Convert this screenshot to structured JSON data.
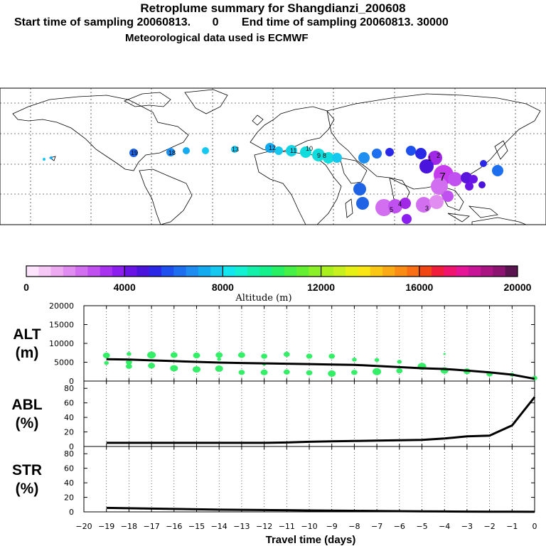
{
  "header": {
    "title": "Retroplume summary for Shangdianzi_200608",
    "start_label": "Start time of sampling 20060813.",
    "start_zero": "0",
    "end_label": "End time of sampling 20060813. 30000",
    "met_line": "Meteorological data used is ECMWF"
  },
  "colors": {
    "green_points": "#33ee66",
    "line": "#000000",
    "map_water": "#ffffff"
  },
  "map": {
    "plume_labels": [
      {
        "text": "19",
        "color": "#1e63e6"
      },
      {
        "text": "18",
        "color": "#1e8ef0"
      },
      {
        "text": "13",
        "color": "#14c8f0"
      },
      {
        "text": "12",
        "color": "#14c8f0"
      },
      {
        "text": "11",
        "color": "#14d2e6"
      },
      {
        "text": "10",
        "color": "#0fdcdc"
      },
      {
        "text": "9",
        "color": "#0fdcdc"
      },
      {
        "text": "8",
        "color": "#19b4f0"
      },
      {
        "text": "7",
        "color": "#c83cf0"
      },
      {
        "text": "5",
        "color": "#a028e6"
      },
      {
        "text": "4",
        "color": "#3214c8"
      },
      {
        "text": "3",
        "color": "#cc44ff"
      },
      {
        "text": "2",
        "color": "#aa22ee"
      },
      {
        "text": "1",
        "color": "#5a14dc"
      }
    ]
  },
  "colorbar": {
    "title": "Altitude (m)",
    "tick_labels": [
      "0",
      "4000",
      "8000",
      "12000",
      "16000",
      "20000"
    ],
    "colors": [
      "#fce4fc",
      "#f5c8f5",
      "#eeaaf0",
      "#e18cf0",
      "#d26ef0",
      "#c050f0",
      "#a832f0",
      "#8c1ef0",
      "#6a14e6",
      "#4a14dc",
      "#2a28e6",
      "#1e50f0",
      "#1e6ef0",
      "#1e8cf0",
      "#14aaf0",
      "#14c8f0",
      "#14e6f0",
      "#14f0d2",
      "#14f0aa",
      "#14f08c",
      "#28f064",
      "#46f046",
      "#64f032",
      "#8cf028",
      "#aaf01e",
      "#c8f01e",
      "#e6f014",
      "#fae614",
      "#fac814",
      "#faaa14",
      "#fa8c14",
      "#fa6e14",
      "#f04614",
      "#f01e3c",
      "#f0146e",
      "#e61496",
      "#c81496",
      "#aa1482",
      "#8c1470",
      "#5a1450"
    ]
  },
  "chart_data": {
    "type": "line",
    "xlabel": "Travel time (days)",
    "x_tick_labels": [
      "−20",
      "−19",
      "−18",
      "−17",
      "−16",
      "−15",
      "−14",
      "−13",
      "−12",
      "−11",
      "−10",
      "−9",
      "−8",
      "−7",
      "−6",
      "−5",
      "−4",
      "−3",
      "−2",
      "−1",
      "0"
    ],
    "xlim": [
      -20,
      0
    ],
    "panels": [
      {
        "name": "alt",
        "label_line1": "ALT",
        "label_line2": "(m)",
        "ylim": [
          0,
          20000
        ],
        "yticks": [
          "0",
          "5000",
          "10000",
          "15000",
          "20000"
        ],
        "line": {
          "x": [
            -19,
            -18,
            -17,
            -16,
            -15,
            -14,
            -13,
            -12,
            -11,
            -10,
            -9,
            -8,
            -7,
            -6,
            -5,
            -4,
            -3,
            -2,
            -1,
            0
          ],
          "y": [
            5800,
            5700,
            5500,
            5300,
            5100,
            4900,
            4800,
            4700,
            4600,
            4500,
            4400,
            4300,
            4000,
            3700,
            3400,
            3200,
            2800,
            2300,
            1700,
            600
          ]
        },
        "scatter": {
          "name": "plume clusters",
          "x": [
            -19,
            -19,
            -18,
            -18,
            -18,
            -17,
            -17,
            -16,
            -16,
            -15,
            -15,
            -14,
            -14,
            -14,
            -13,
            -13,
            -12,
            -12,
            -12,
            -11,
            -11,
            -10,
            -10,
            -9,
            -9,
            -8,
            -8,
            -7,
            -7,
            -6,
            -6,
            -5,
            -4,
            -4,
            -3,
            -2,
            -1,
            0
          ],
          "y": [
            6800,
            4800,
            7200,
            5000,
            3900,
            6900,
            4100,
            6900,
            3400,
            6800,
            3100,
            6900,
            3300,
            5800,
            6900,
            2300,
            6600,
            2300,
            4500,
            7100,
            2400,
            6600,
            2200,
            6600,
            2000,
            5700,
            2300,
            5600,
            2500,
            5100,
            2700,
            3900,
            7200,
            2800,
            2600,
            1900,
            1700,
            800
          ],
          "size": [
            9,
            6,
            6,
            8,
            8,
            11,
            9,
            9,
            10,
            9,
            10,
            9,
            10,
            5,
            9,
            8,
            8,
            9,
            5,
            8,
            8,
            8,
            8,
            8,
            10,
            6,
            8,
            6,
            11,
            6,
            8,
            11,
            3,
            10,
            9,
            8,
            6,
            7
          ]
        }
      },
      {
        "name": "abl",
        "label_line1": "ABL",
        "label_line2": "(%)",
        "ylim": [
          0,
          90
        ],
        "yticks": [
          "0",
          "20",
          "40",
          "60",
          "80"
        ],
        "line": {
          "x": [
            -19,
            -18,
            -17,
            -16,
            -15,
            -14,
            -13,
            -12,
            -11,
            -10,
            -9,
            -8,
            -7,
            -6,
            -5,
            -4,
            -3,
            -2,
            -1,
            0
          ],
          "y": [
            5,
            5,
            5,
            5,
            5,
            5,
            5,
            5,
            5.5,
            6.5,
            7,
            7.5,
            8,
            8.5,
            9,
            11,
            14,
            15,
            29,
            68
          ]
        }
      },
      {
        "name": "str",
        "label_line1": "STR",
        "label_line2": "(%)",
        "ylim": [
          0,
          90
        ],
        "yticks": [
          "0",
          "20",
          "40",
          "60",
          "80"
        ],
        "line": {
          "x": [
            -19,
            -18,
            -17,
            -16,
            -15,
            -14,
            -13,
            -12,
            -11,
            -10,
            -9,
            -8,
            -7,
            -6,
            -5,
            -4,
            -3,
            -2,
            -1,
            0
          ],
          "y": [
            5.5,
            5,
            4.5,
            4,
            3.5,
            3,
            2.8,
            2.5,
            2.3,
            2,
            1.8,
            1.5,
            1.3,
            1,
            0.8,
            0.6,
            0.4,
            0.3,
            0.2,
            0.1
          ]
        }
      }
    ]
  }
}
